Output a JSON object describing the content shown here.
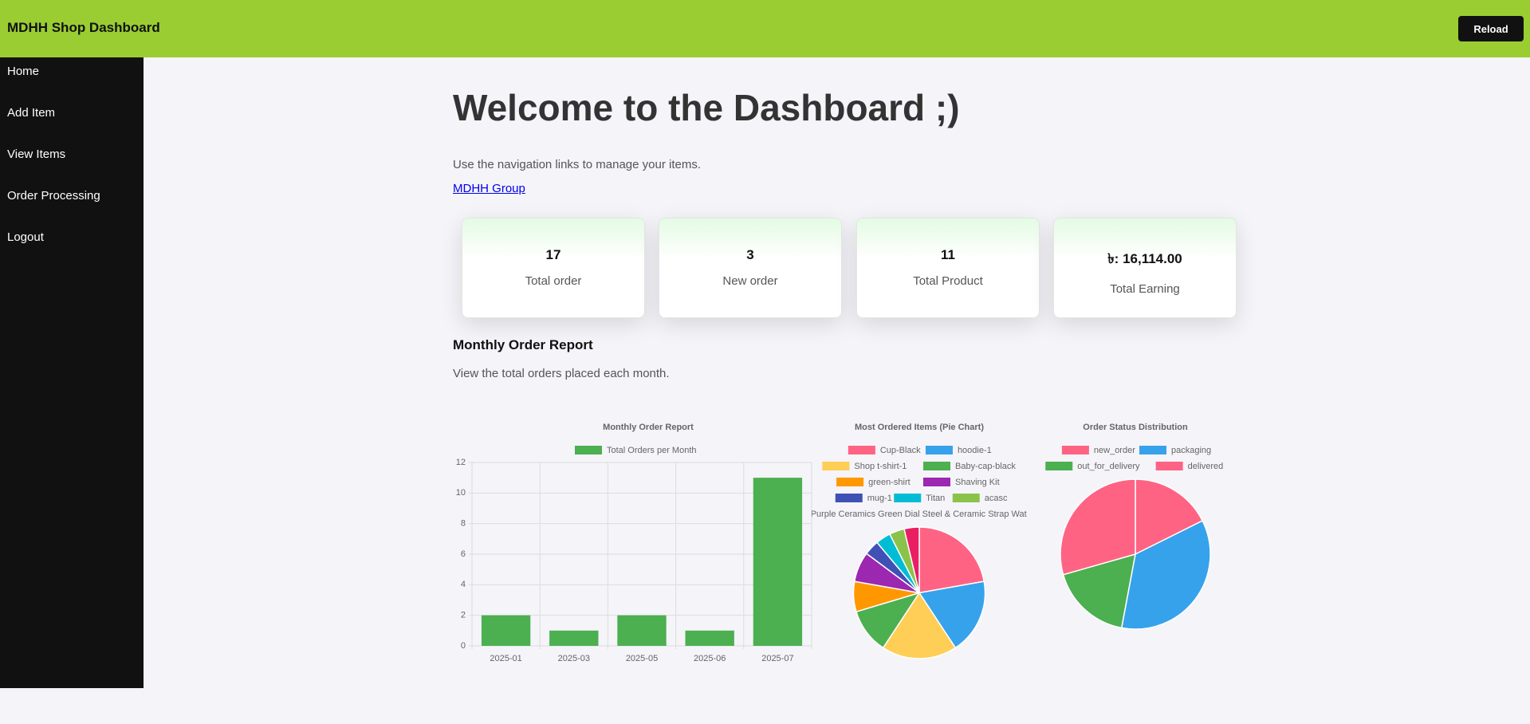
{
  "header": {
    "title": "MDHH Shop Dashboard",
    "button": "Reload"
  },
  "nav": [
    "Home",
    "Add Item",
    "View Items",
    "Order Processing",
    "Logout"
  ],
  "main": {
    "heading": "Welcome to the Dashboard ;)",
    "text": "Use the navigation links to manage your items.",
    "link": "MDHH Group"
  },
  "cards": [
    {
      "value": 17,
      "label": "Total order"
    },
    {
      "value": 3,
      "label": "New order"
    },
    {
      "value": 11,
      "label": "Total Product"
    },
    {
      "value": "৳: 16,114.00",
      "label": "Total Earning"
    }
  ],
  "section": {
    "title": "Monthly Order Report",
    "text": "View the total orders placed each month."
  },
  "chart_data": [
    {
      "type": "bar",
      "title": "Monthly Order Report",
      "categories": [
        "2025-01",
        "2025-03",
        "2025-05",
        "2025-06",
        "2025-07"
      ],
      "series": [
        {
          "name": "Total Orders per Month",
          "color": "#4caf50",
          "values": [
            2,
            1,
            2,
            1,
            11
          ]
        }
      ],
      "ylim": [
        0,
        12
      ],
      "yticks": [
        0,
        2,
        4,
        6,
        8,
        10,
        12
      ],
      "grid": true
    },
    {
      "type": "pie",
      "title": "Most Ordered Items (Pie Chart)",
      "categories": [
        "Cup-Black",
        "hoodie-1",
        "Shop t-shirt-1",
        "Baby-cap-black",
        "green-shirt",
        "Shaving Kit",
        "mug-1",
        "Titan",
        "acasc",
        "Purple Ceramics Green Dial Steel & Ceramic Strap Watch"
      ],
      "values": [
        6,
        5,
        5,
        3,
        2,
        2,
        1,
        1,
        1,
        1
      ],
      "colors": [
        "#ff6384",
        "#36a2eb",
        "#ffce56",
        "#4caf50",
        "#ff9800",
        "#9c27b0",
        "#3f51b5",
        "#00bcd4",
        "#8bc34a",
        "#e91e63"
      ]
    },
    {
      "type": "pie",
      "title": "Order Status Distribution",
      "categories": [
        "new_order",
        "packaging",
        "out_for_delivery",
        "delivered"
      ],
      "values": [
        3,
        6,
        3,
        5
      ],
      "colors": [
        "#ff6384",
        "#36a2eb",
        "#4caf50",
        "#ff6384"
      ]
    }
  ]
}
